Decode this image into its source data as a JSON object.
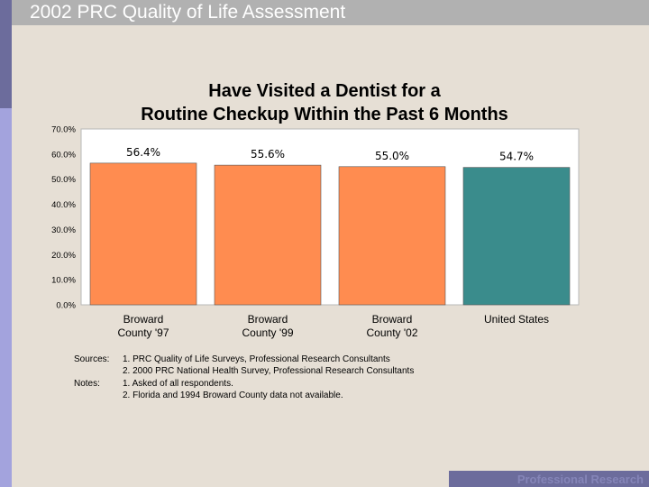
{
  "slide": {
    "title": "2002 PRC Quality of Life Assessment",
    "footer": "Professional Research"
  },
  "colors": {
    "broward": "#ff8c50",
    "us": "#3a8c8c",
    "plot_bg": "#ffffff",
    "accent_dark": "#6c6c9c",
    "accent_light": "#a3a3dd"
  },
  "chart_data": {
    "type": "bar",
    "title_lines": [
      "Have Visited a Dentist for a",
      "Routine Checkup Within the Past 6 Months"
    ],
    "categories": [
      [
        "Broward",
        "County '97"
      ],
      [
        "Broward",
        "County '99"
      ],
      [
        "Broward",
        "County '02"
      ],
      [
        "United States"
      ]
    ],
    "values": [
      56.4,
      55.6,
      55.0,
      54.7
    ],
    "value_labels": [
      "56.4%",
      "55.6%",
      "55.0%",
      "54.7%"
    ],
    "series_color_keys": [
      "broward",
      "broward",
      "broward",
      "us"
    ],
    "ylim": [
      0,
      70
    ],
    "yticks": [
      0,
      10,
      20,
      30,
      40,
      50,
      60,
      70
    ],
    "ytick_labels": [
      "0.0%",
      "10.0%",
      "20.0%",
      "30.0%",
      "40.0%",
      "50.0%",
      "60.0%",
      "70.0%"
    ],
    "xlabel": "",
    "ylabel": "",
    "grid": false
  },
  "sources": {
    "sources_label": "Sources:",
    "source_1": "1. PRC Quality of Life Surveys, Professional Research Consultants",
    "source_2": "2. 2000 PRC National Health Survey, Professional Research Consultants",
    "notes_label": "Notes:",
    "note_1": "1. Asked of all respondents.",
    "note_2": "2. Florida and 1994 Broward County data not available."
  }
}
